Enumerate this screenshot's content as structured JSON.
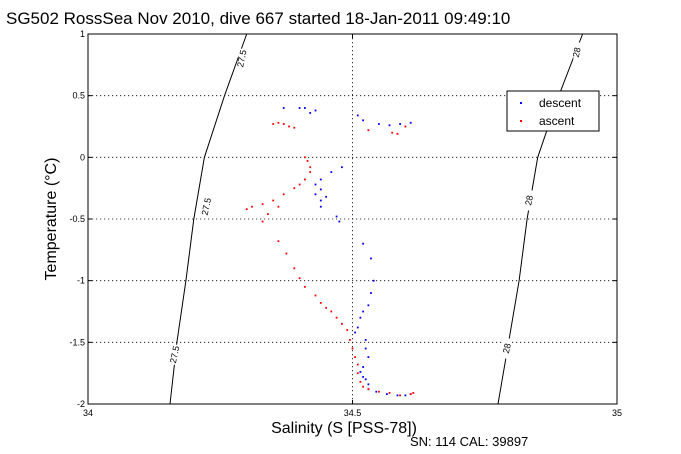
{
  "footer": {
    "serial": "SN: 114  CAL: 39897"
  },
  "chart_data": {
    "type": "scatter",
    "title": "SG502 RossSea Nov 2010, dive 667 started 18-Jan-2011 09:49:10",
    "xlabel": "Salinity (S [PSS-78])",
    "ylabel": "Temperature (°C)",
    "xlim": [
      34,
      35
    ],
    "ylim": [
      -2,
      1
    ],
    "xticks": [
      34,
      34.5,
      35
    ],
    "xtick_labels": [
      "34",
      "34.5",
      "35"
    ],
    "yticks": [
      1,
      0.5,
      0,
      -0.5,
      -1,
      -1.5,
      -2
    ],
    "ytick_labels": [
      "1",
      "0.5",
      "0",
      "-0.5",
      "-1",
      "-1.5",
      "-2"
    ],
    "grid": true,
    "legend_position": "top-right",
    "density_contours": [
      {
        "label": "27.5",
        "points": [
          [
            34.3,
            1.0
          ],
          [
            34.258,
            0.5
          ],
          [
            34.22,
            0.0
          ],
          [
            34.2,
            -0.5
          ],
          [
            34.185,
            -1.0
          ],
          [
            34.168,
            -1.5
          ],
          [
            34.155,
            -2.0
          ]
        ],
        "label_positions": [
          [
            34.292,
            0.8
          ],
          [
            34.225,
            -0.4
          ],
          [
            34.165,
            -1.6
          ]
        ]
      },
      {
        "label": "28",
        "points": [
          [
            34.935,
            1.0
          ],
          [
            34.89,
            0.5
          ],
          [
            34.85,
            0.0
          ],
          [
            34.83,
            -0.5
          ],
          [
            34.815,
            -1.0
          ],
          [
            34.795,
            -1.5
          ],
          [
            34.775,
            -2.0
          ]
        ],
        "label_positions": [
          [
            34.925,
            0.85
          ],
          [
            34.835,
            -0.35
          ],
          [
            34.793,
            -1.55
          ]
        ]
      }
    ],
    "series": [
      {
        "name": "descent",
        "color": "#0000ff",
        "points": [
          [
            34.4,
            0.4
          ],
          [
            34.41,
            0.4
          ],
          [
            34.43,
            0.38
          ],
          [
            34.42,
            0.36
          ],
          [
            34.37,
            0.4
          ],
          [
            34.51,
            0.34
          ],
          [
            34.52,
            0.3
          ],
          [
            34.55,
            0.27
          ],
          [
            34.57,
            0.26
          ],
          [
            34.59,
            0.27
          ],
          [
            34.61,
            0.28
          ],
          [
            34.48,
            -0.08
          ],
          [
            34.46,
            -0.12
          ],
          [
            34.44,
            -0.18
          ],
          [
            34.43,
            -0.22
          ],
          [
            34.44,
            -0.26
          ],
          [
            34.43,
            -0.3
          ],
          [
            34.44,
            -0.35
          ],
          [
            34.44,
            -0.4
          ],
          [
            34.45,
            -0.32
          ],
          [
            34.47,
            -0.48
          ],
          [
            34.475,
            -0.52
          ],
          [
            34.52,
            -0.7
          ],
          [
            34.535,
            -0.82
          ],
          [
            34.54,
            -1.0
          ],
          [
            34.535,
            -1.1
          ],
          [
            34.53,
            -1.2
          ],
          [
            34.52,
            -1.25
          ],
          [
            34.515,
            -1.3
          ],
          [
            34.51,
            -1.38
          ],
          [
            34.505,
            -1.42
          ],
          [
            34.525,
            -1.48
          ],
          [
            34.525,
            -1.55
          ],
          [
            34.53,
            -1.62
          ],
          [
            34.52,
            -1.7
          ],
          [
            34.515,
            -1.74
          ],
          [
            34.52,
            -1.78
          ],
          [
            34.525,
            -1.8
          ],
          [
            34.53,
            -1.84
          ],
          [
            34.53,
            -1.88
          ],
          [
            34.545,
            -1.9
          ],
          [
            34.565,
            -1.92
          ],
          [
            34.585,
            -1.93
          ],
          [
            34.6,
            -1.93
          ],
          [
            34.61,
            -1.92
          ]
        ]
      },
      {
        "name": "ascent",
        "color": "#ff0000",
        "points": [
          [
            34.35,
            0.27
          ],
          [
            34.36,
            0.28
          ],
          [
            34.37,
            0.27
          ],
          [
            34.38,
            0.25
          ],
          [
            34.39,
            0.24
          ],
          [
            34.53,
            0.22
          ],
          [
            34.575,
            0.2
          ],
          [
            34.585,
            0.19
          ],
          [
            34.6,
            0.25
          ],
          [
            34.41,
            0.0
          ],
          [
            34.415,
            -0.03
          ],
          [
            34.42,
            -0.08
          ],
          [
            34.42,
            -0.12
          ],
          [
            34.41,
            -0.18
          ],
          [
            34.4,
            -0.22
          ],
          [
            34.39,
            -0.25
          ],
          [
            34.37,
            -0.3
          ],
          [
            34.35,
            -0.35
          ],
          [
            34.33,
            -0.38
          ],
          [
            34.31,
            -0.4
          ],
          [
            34.3,
            -0.42
          ],
          [
            34.36,
            -0.4
          ],
          [
            34.34,
            -0.46
          ],
          [
            34.33,
            -0.52
          ],
          [
            34.36,
            -0.68
          ],
          [
            34.375,
            -0.78
          ],
          [
            34.39,
            -0.9
          ],
          [
            34.4,
            -0.98
          ],
          [
            34.41,
            -1.05
          ],
          [
            34.43,
            -1.12
          ],
          [
            34.44,
            -1.18
          ],
          [
            34.45,
            -1.22
          ],
          [
            34.46,
            -1.25
          ],
          [
            34.47,
            -1.3
          ],
          [
            34.48,
            -1.35
          ],
          [
            34.49,
            -1.4
          ],
          [
            34.495,
            -1.48
          ],
          [
            34.5,
            -1.55
          ],
          [
            34.505,
            -1.62
          ],
          [
            34.51,
            -1.68
          ],
          [
            34.51,
            -1.75
          ],
          [
            34.515,
            -1.82
          ],
          [
            34.52,
            -1.86
          ],
          [
            34.53,
            -1.88
          ],
          [
            34.55,
            -1.9
          ],
          [
            34.57,
            -1.91
          ],
          [
            34.59,
            -1.93
          ],
          [
            34.61,
            -1.92
          ],
          [
            34.615,
            -1.91
          ]
        ]
      }
    ]
  }
}
